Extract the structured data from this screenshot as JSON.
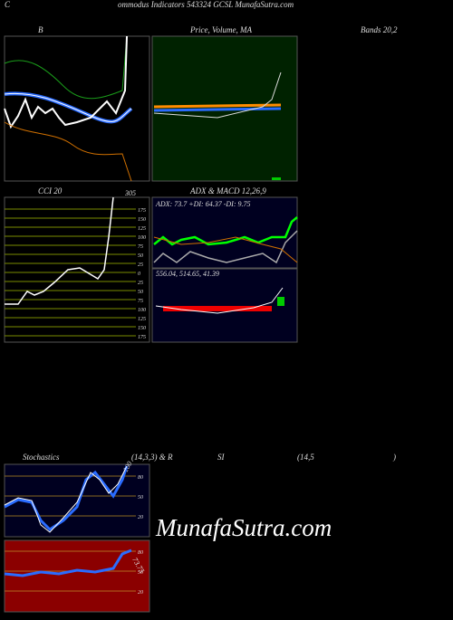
{
  "header": {
    "left": "C",
    "title": "ommodus Indicators 543324  GCSL  MunafaSutra.com"
  },
  "panels": {
    "bands": {
      "left": "B",
      "middle": "Price, Volume, MA",
      "right": "Bands 20,2"
    },
    "cci": {
      "title": "CCI 20",
      "top_label": "305",
      "ticks": [
        "175",
        "150",
        "125",
        "100",
        "75",
        "50",
        "25",
        "0",
        "25",
        "50",
        "75",
        "100",
        "125",
        "150",
        "175"
      ]
    },
    "adx": {
      "title": "ADX  & MACD 12,26,9",
      "readout": "ADX: 73.7 +DI: 64.37 -DI: 9.75"
    },
    "macd": {
      "readout": "556.04,  514.65,  41.39"
    },
    "stoch": {
      "title_a": "Stochastics",
      "title_b": "(14,3,3) & R",
      "title_c": "SI",
      "title_d": "(14,5",
      "title_e": ")",
      "ticks": [
        "80",
        "50",
        "20"
      ],
      "top_label": "100"
    },
    "rsi": {
      "ticks": [
        "80",
        "50",
        "20"
      ],
      "value_label": "73.75"
    }
  },
  "watermark": "MunafaSutra.com"
}
